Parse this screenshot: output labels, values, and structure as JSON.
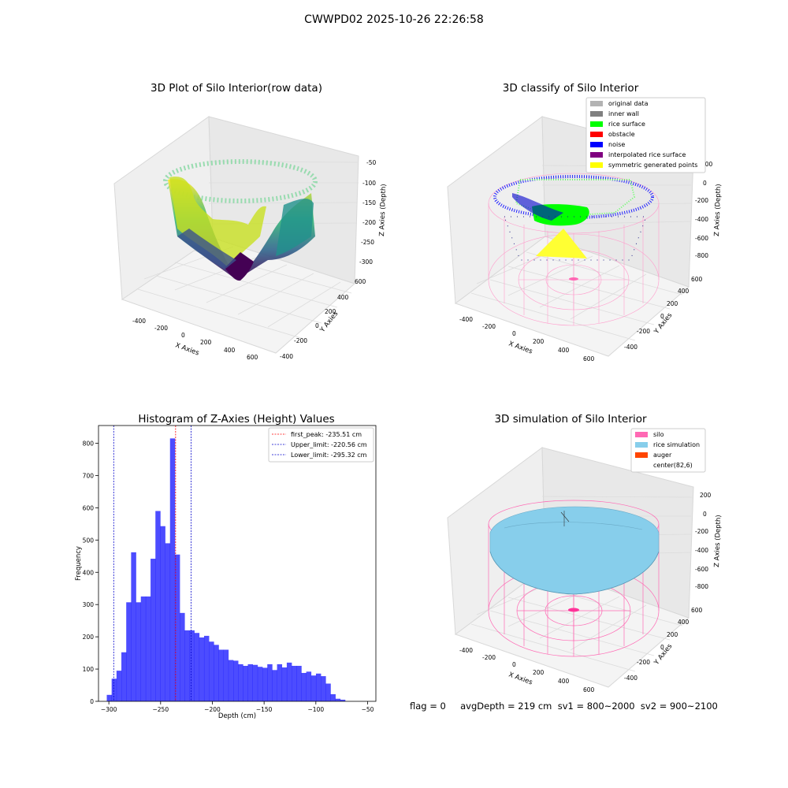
{
  "figure": {
    "suptitle": "CWWPD02 2025-10-26 22:26:58",
    "footer_text": "flag = 0     avgDepth = 219 cm  sv1 = 800~2000  sv2 = 900~2100"
  },
  "panels": {
    "raw": {
      "title": "3D Plot of Silo Interior(row data)",
      "xlabel": "X Axies",
      "ylabel": "Y Axies",
      "zlabel": "Z Axies (Depth)",
      "xticks": [
        "-400",
        "-200",
        "0",
        "200",
        "400",
        "600"
      ],
      "yticks": [
        "-400",
        "-200",
        "0",
        "200",
        "400",
        "600"
      ],
      "zticks": [
        "-50",
        "-100",
        "-150",
        "-200",
        "-250",
        "-300"
      ]
    },
    "classify": {
      "title": "3D classify of Silo Interior",
      "xlabel": "X Axies",
      "ylabel": "Y Axies",
      "zlabel": "Z Axies (Depth)",
      "xticks": [
        "-400",
        "-200",
        "0",
        "200",
        "400",
        "600"
      ],
      "yticks": [
        "-400",
        "-200",
        "0",
        "200",
        "400",
        "600"
      ],
      "zticks": [
        "200",
        "0",
        "-200",
        "-400",
        "-600",
        "-800"
      ],
      "legend": [
        {
          "label": "original data",
          "color": "#b3b3b3"
        },
        {
          "label": "inner wall",
          "color": "#808080"
        },
        {
          "label": "rice surface",
          "color": "#00ff00"
        },
        {
          "label": "obstacle",
          "color": "#ff0000"
        },
        {
          "label": "noise",
          "color": "#0000ff"
        },
        {
          "label": "interpolated rice surface",
          "color": "#800080"
        },
        {
          "label": "symmetric generated points",
          "color": "#ffff00"
        }
      ]
    },
    "simulation": {
      "title": "3D simulation of Silo Interior",
      "xlabel": "X Axies",
      "ylabel": "Y Axies",
      "zlabel": "Z Axies (Depth)",
      "xticks": [
        "-400",
        "-200",
        "0",
        "200",
        "400",
        "600"
      ],
      "yticks": [
        "-400",
        "-200",
        "0",
        "200",
        "400",
        "600"
      ],
      "zticks": [
        "200",
        "0",
        "-200",
        "-400",
        "-600",
        "-800"
      ],
      "legend": [
        {
          "label": "silo",
          "color": "#ff69b4"
        },
        {
          "label": "rice simulation",
          "color": "#87ceeb"
        },
        {
          "label": "auger",
          "color": "#ff4500"
        },
        {
          "label": "center(82,6)",
          "color": "#ffffff"
        }
      ]
    }
  },
  "chart_data": {
    "type": "bar",
    "title": "Histogram of Z-Axies (Height) Values",
    "xlabel": "Depth (cm)",
    "ylabel": "Frequency",
    "xlim": [
      -310,
      -42
    ],
    "ylim": [
      0,
      855
    ],
    "xticks": [
      -300,
      -250,
      -200,
      -150,
      -100,
      -50
    ],
    "yticks": [
      0,
      100,
      200,
      300,
      400,
      500,
      600,
      700,
      800
    ],
    "bar_color": "#0000ff",
    "bin_width": 4.7,
    "bins_start": -302,
    "values": [
      20,
      70,
      95,
      152,
      307,
      462,
      307,
      325,
      325,
      442,
      590,
      543,
      490,
      815,
      455,
      274,
      220,
      220,
      212,
      198,
      203,
      185,
      175,
      160,
      160,
      128,
      126,
      115,
      110,
      115,
      113,
      107,
      104,
      115,
      97,
      115,
      105,
      120,
      110,
      110,
      88,
      92,
      80,
      86,
      78,
      55,
      22,
      8,
      5
    ],
    "vlines": [
      {
        "x": -235.51,
        "color": "#ff0000",
        "label": "first_peak: -235.51 cm"
      },
      {
        "x": -220.56,
        "color": "#0000cc",
        "label": "Upper_limit: -220.56 cm"
      },
      {
        "x": -295.32,
        "color": "#0000cc",
        "label": "Lower_limit: -295.32 cm"
      }
    ],
    "legend_position": "top-right"
  }
}
